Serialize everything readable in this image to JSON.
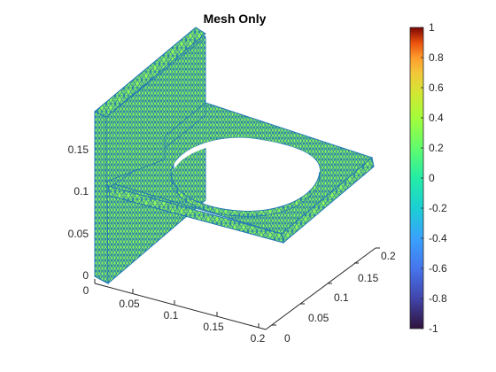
{
  "title": "Mesh Only",
  "axes": {
    "x": {
      "ticks": [
        "0",
        "0.05",
        "0.1",
        "0.15",
        "0.2"
      ]
    },
    "y": {
      "ticks": [
        "0",
        "0.05",
        "0.1",
        "0.15",
        "0.2"
      ]
    },
    "z": {
      "ticks": [
        "0",
        "0.05",
        "0.1",
        "0.15"
      ]
    }
  },
  "colorbar": {
    "ticks": [
      "1",
      "0.8",
      "0.6",
      "0.4",
      "0.2",
      "0",
      "-0.2",
      "-0.4",
      "-0.6",
      "-0.8",
      "-1"
    ],
    "range": [
      -1,
      1
    ],
    "colormap": "turbo"
  },
  "mesh": {
    "face_color": "#8ef55a",
    "edge_color": "#1f77b4"
  }
}
